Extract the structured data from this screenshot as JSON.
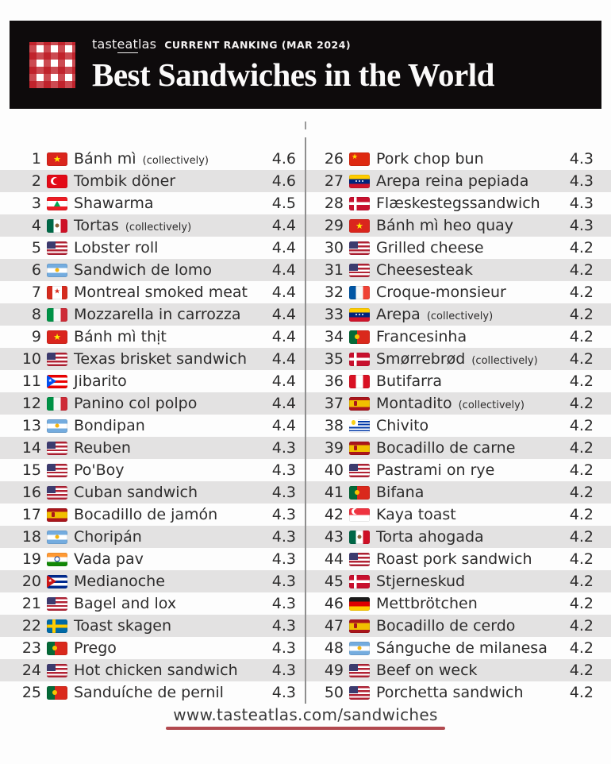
{
  "header": {
    "brand": {
      "pre": "tast",
      "mid": "eat",
      "post": "las"
    },
    "ranking_label": "CURRENT RANKING (MAR 2024)",
    "title": "Best Sandwiches in the World",
    "logo": "red-white-gingham-checker"
  },
  "colors": {
    "header_bg": "#0e0b0c",
    "stripe": "#e3e2e2",
    "text": "#2d2c2c",
    "accent_red": "#b2494f"
  },
  "list": {
    "items": [
      {
        "rank": 1,
        "flag": "vietnam",
        "name": "Bánh mì",
        "note": "(collectively)",
        "rating": "4.6"
      },
      {
        "rank": 2,
        "flag": "turkey",
        "name": "Tombik döner",
        "note": "",
        "rating": "4.6"
      },
      {
        "rank": 3,
        "flag": "lebanon",
        "name": "Shawarma",
        "note": "",
        "rating": "4.5"
      },
      {
        "rank": 4,
        "flag": "mexico",
        "name": "Tortas",
        "note": "(collectively)",
        "rating": "4.4"
      },
      {
        "rank": 5,
        "flag": "usa",
        "name": "Lobster roll",
        "note": "",
        "rating": "4.4"
      },
      {
        "rank": 6,
        "flag": "argentina",
        "name": "Sandwich de lomo",
        "note": "",
        "rating": "4.4"
      },
      {
        "rank": 7,
        "flag": "canada",
        "name": "Montreal smoked meat",
        "note": "",
        "rating": "4.4"
      },
      {
        "rank": 8,
        "flag": "italy",
        "name": "Mozzarella in carrozza",
        "note": "",
        "rating": "4.4"
      },
      {
        "rank": 9,
        "flag": "vietnam",
        "name": "Bánh mì thịt",
        "note": "",
        "rating": "4.4"
      },
      {
        "rank": 10,
        "flag": "usa",
        "name": "Texas brisket sandwich",
        "note": "",
        "rating": "4.4"
      },
      {
        "rank": 11,
        "flag": "puerto-rico",
        "name": "Jibarito",
        "note": "",
        "rating": "4.4"
      },
      {
        "rank": 12,
        "flag": "italy",
        "name": "Panino col polpo",
        "note": "",
        "rating": "4.4"
      },
      {
        "rank": 13,
        "flag": "argentina",
        "name": "Bondipan",
        "note": "",
        "rating": "4.4"
      },
      {
        "rank": 14,
        "flag": "usa",
        "name": "Reuben",
        "note": "",
        "rating": "4.3"
      },
      {
        "rank": 15,
        "flag": "usa",
        "name": "Po'Boy",
        "note": "",
        "rating": "4.3"
      },
      {
        "rank": 16,
        "flag": "usa",
        "name": "Cuban sandwich",
        "note": "",
        "rating": "4.3"
      },
      {
        "rank": 17,
        "flag": "spain",
        "name": "Bocadillo de jamón",
        "note": "",
        "rating": "4.3"
      },
      {
        "rank": 18,
        "flag": "argentina",
        "name": "Choripán",
        "note": "",
        "rating": "4.3"
      },
      {
        "rank": 19,
        "flag": "india",
        "name": "Vada pav",
        "note": "",
        "rating": "4.3"
      },
      {
        "rank": 20,
        "flag": "cuba",
        "name": "Medianoche",
        "note": "",
        "rating": "4.3"
      },
      {
        "rank": 21,
        "flag": "usa",
        "name": "Bagel and lox",
        "note": "",
        "rating": "4.3"
      },
      {
        "rank": 22,
        "flag": "sweden",
        "name": "Toast skagen",
        "note": "",
        "rating": "4.3"
      },
      {
        "rank": 23,
        "flag": "portugal",
        "name": "Prego",
        "note": "",
        "rating": "4.3"
      },
      {
        "rank": 24,
        "flag": "usa",
        "name": "Hot chicken sandwich",
        "note": "",
        "rating": "4.3"
      },
      {
        "rank": 25,
        "flag": "portugal",
        "name": "Sanduíche de pernil",
        "note": "",
        "rating": "4.3"
      },
      {
        "rank": 26,
        "flag": "china",
        "name": "Pork chop bun",
        "note": "",
        "rating": "4.3"
      },
      {
        "rank": 27,
        "flag": "venezuela",
        "name": "Arepa reina pepiada",
        "note": "",
        "rating": "4.3"
      },
      {
        "rank": 28,
        "flag": "denmark",
        "name": "Flæskestegssandwich",
        "note": "",
        "rating": "4.3"
      },
      {
        "rank": 29,
        "flag": "vietnam",
        "name": "Bánh mì heo quay",
        "note": "",
        "rating": "4.3"
      },
      {
        "rank": 30,
        "flag": "usa",
        "name": "Grilled cheese",
        "note": "",
        "rating": "4.2"
      },
      {
        "rank": 31,
        "flag": "usa",
        "name": "Cheesesteak",
        "note": "",
        "rating": "4.2"
      },
      {
        "rank": 32,
        "flag": "france",
        "name": "Croque-monsieur",
        "note": "",
        "rating": "4.2"
      },
      {
        "rank": 33,
        "flag": "venezuela",
        "name": "Arepa",
        "note": "(collectively)",
        "rating": "4.2"
      },
      {
        "rank": 34,
        "flag": "portugal",
        "name": "Francesinha",
        "note": "",
        "rating": "4.2"
      },
      {
        "rank": 35,
        "flag": "denmark",
        "name": "Smørrebrød",
        "note": "(collectively)",
        "rating": "4.2"
      },
      {
        "rank": 36,
        "flag": "peru",
        "name": "Butifarra",
        "note": "",
        "rating": "4.2"
      },
      {
        "rank": 37,
        "flag": "spain",
        "name": "Montadito",
        "note": "(collectively)",
        "rating": "4.2"
      },
      {
        "rank": 38,
        "flag": "uruguay",
        "name": "Chivito",
        "note": "",
        "rating": "4.2"
      },
      {
        "rank": 39,
        "flag": "spain",
        "name": "Bocadillo de carne",
        "note": "",
        "rating": "4.2"
      },
      {
        "rank": 40,
        "flag": "usa",
        "name": "Pastrami on rye",
        "note": "",
        "rating": "4.2"
      },
      {
        "rank": 41,
        "flag": "portugal",
        "name": "Bifana",
        "note": "",
        "rating": "4.2"
      },
      {
        "rank": 42,
        "flag": "singapore",
        "name": "Kaya toast",
        "note": "",
        "rating": "4.2"
      },
      {
        "rank": 43,
        "flag": "mexico",
        "name": "Torta ahogada",
        "note": "",
        "rating": "4.2"
      },
      {
        "rank": 44,
        "flag": "usa",
        "name": "Roast pork sandwich",
        "note": "",
        "rating": "4.2"
      },
      {
        "rank": 45,
        "flag": "denmark",
        "name": "Stjerneskud",
        "note": "",
        "rating": "4.2"
      },
      {
        "rank": 46,
        "flag": "germany",
        "name": "Mettbrötchen",
        "note": "",
        "rating": "4.2"
      },
      {
        "rank": 47,
        "flag": "spain",
        "name": "Bocadillo de cerdo",
        "note": "",
        "rating": "4.2"
      },
      {
        "rank": 48,
        "flag": "argentina",
        "name": "Sánguche de milanesa",
        "note": "",
        "rating": "4.2"
      },
      {
        "rank": 49,
        "flag": "usa",
        "name": "Beef on weck",
        "note": "",
        "rating": "4.2"
      },
      {
        "rank": 50,
        "flag": "usa",
        "name": "Porchetta sandwich",
        "note": "",
        "rating": "4.2"
      }
    ]
  },
  "footer": {
    "url": "www.tasteatlas.com/sandwiches"
  }
}
